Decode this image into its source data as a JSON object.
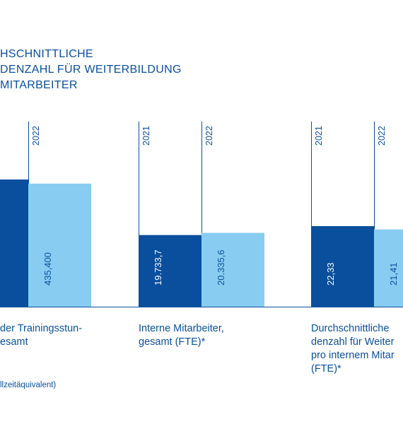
{
  "chart_data": {
    "type": "bar",
    "title_lines": [
      "HSCHNITTLICHE",
      "DENZAHL FÜR WEITERBILDUNG",
      "MITARBEITER"
    ],
    "series": [
      {
        "name": "2021",
        "color": "#0a4f9e"
      },
      {
        "name": "2022",
        "color": "#88cdf1"
      }
    ],
    "groups": [
      {
        "label_lines": [
          "der Trainingsstun-",
          "esamt"
        ],
        "years": [
          "",
          "2022"
        ],
        "values": [
          450000,
          435400
        ],
        "value_labels": [
          "",
          "435,400"
        ],
        "ylim": [
          0,
          655000
        ]
      },
      {
        "label_lines": [
          "Interne Mitarbeiter,",
          "gesamt (FTE)*"
        ],
        "years": [
          "2021",
          "2022"
        ],
        "values": [
          19733.7,
          20335.6
        ],
        "value_labels": [
          "19.733,7",
          "20.335,6"
        ],
        "ylim": [
          0,
          51000
        ]
      },
      {
        "label_lines": [
          "Durchschnittliche",
          "denzahl für Weiter",
          "pro internem Mitar",
          "(FTE)*"
        ],
        "years": [
          "2021",
          "2022"
        ],
        "values": [
          22.33,
          21.41
        ],
        "value_labels": [
          "22,33",
          "21,41"
        ],
        "ylim": [
          0,
          51.3
        ]
      }
    ],
    "footnote": "llzeitäquivalent)",
    "colors": {
      "text": "#0a4f9e",
      "axis": "#0a4f9e",
      "dark_bar": "#0a4f9e",
      "light_bar": "#88cdf1"
    }
  }
}
